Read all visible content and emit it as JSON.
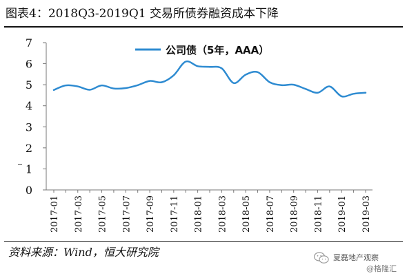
{
  "header": {
    "title": "图表4：2018Q3-2019Q1 交易所债券融资成本下降"
  },
  "footer": {
    "source": "资料来源：Wind，恒大研究院"
  },
  "watermark": {
    "line1": "夏磊地产观察",
    "line2": "@格隆汇"
  },
  "chart_data": {
    "type": "line",
    "title": "",
    "xlabel": "",
    "ylabel": "",
    "ylim": [
      0,
      7
    ],
    "yticks": [
      "0",
      "1",
      "2",
      "3",
      "4",
      "5",
      "6",
      "7"
    ],
    "x_tick_labels": [
      "2017-01",
      "2017-03",
      "2017-05",
      "2017-07",
      "2017-09",
      "2017-11",
      "2018-01",
      "2018-03",
      "2018-05",
      "2018-07",
      "2018-09",
      "2018-11",
      "2019-01",
      "2019-03"
    ],
    "legend_position": "top-center",
    "grid": false,
    "series": [
      {
        "name": "公司债（5年，AAA）",
        "color": "#2e8bd1",
        "x": [
          "2017-01",
          "2017-02",
          "2017-03",
          "2017-04",
          "2017-05",
          "2017-06",
          "2017-07",
          "2017-08",
          "2017-09",
          "2017-10",
          "2017-11",
          "2017-12",
          "2018-01",
          "2018-02",
          "2018-03",
          "2018-04",
          "2018-05",
          "2018-06",
          "2018-07",
          "2018-08",
          "2018-09",
          "2018-10",
          "2018-11",
          "2018-12",
          "2019-01",
          "2019-02",
          "2019-03"
        ],
        "values": [
          4.75,
          4.97,
          4.92,
          4.76,
          4.97,
          4.82,
          4.84,
          4.98,
          5.18,
          5.12,
          5.45,
          6.1,
          5.88,
          5.85,
          5.78,
          5.08,
          5.48,
          5.6,
          5.12,
          4.98,
          5.0,
          4.8,
          4.62,
          4.92,
          4.45,
          4.57,
          4.62
        ]
      }
    ]
  }
}
